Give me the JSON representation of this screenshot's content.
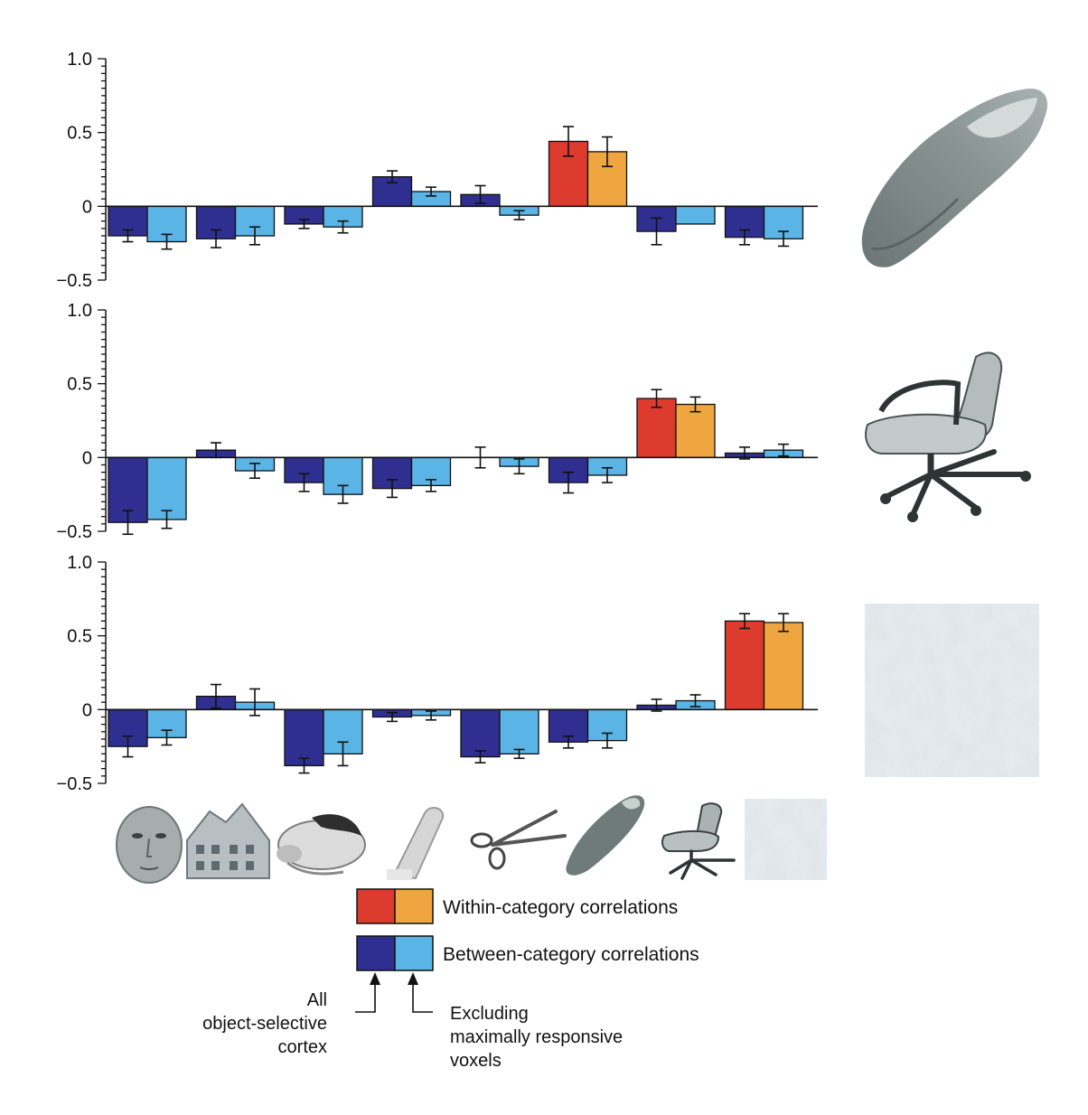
{
  "chart_data": [
    {
      "type": "bar",
      "ylim": [
        -0.5,
        1.0
      ],
      "yticks": [
        "1.0",
        "0.5",
        "0",
        "−0.5"
      ],
      "reference_image": "shoe",
      "categories_images": [
        "face",
        "house",
        "cat",
        "bottle",
        "scissors",
        "shoe",
        "chair",
        "scrambled"
      ],
      "series": [
        {
          "values": [
            -0.2,
            -0.22,
            -0.12,
            0.2,
            0.08,
            -0.17,
            -0.21
          ],
          "errors": [
            0.04,
            0.06,
            0.03,
            0.04,
            0.06,
            0.09,
            0.05
          ]
        },
        {
          "values": [
            -0.24,
            -0.2,
            -0.14,
            0.1,
            -0.06,
            -0.12,
            -0.22
          ],
          "errors": [
            0.05,
            0.06,
            0.04,
            0.03,
            0.03,
            0.0,
            0.05
          ]
        }
      ],
      "within": {
        "index": 5,
        "values": [
          0.44,
          0.37
        ],
        "errors": [
          0.1,
          0.1
        ]
      }
    },
    {
      "type": "bar",
      "ylim": [
        -0.5,
        1.0
      ],
      "yticks": [
        "1.0",
        "0.5",
        "0",
        "−0.5"
      ],
      "reference_image": "chair",
      "series": [
        {
          "values": [
            -0.44,
            0.05,
            -0.17,
            -0.21,
            0.0,
            -0.17,
            0.03
          ],
          "errors": [
            0.08,
            0.05,
            0.06,
            0.06,
            0.07,
            0.07,
            0.04
          ]
        },
        {
          "values": [
            -0.42,
            -0.09,
            -0.25,
            -0.19,
            -0.06,
            -0.12,
            0.05
          ],
          "errors": [
            0.06,
            0.05,
            0.06,
            0.04,
            0.05,
            0.05,
            0.04
          ]
        }
      ],
      "within": {
        "index": 6,
        "values": [
          0.4,
          0.36
        ],
        "errors": [
          0.06,
          0.05
        ]
      }
    },
    {
      "type": "bar",
      "ylim": [
        -0.5,
        1.0
      ],
      "yticks": [
        "1.0",
        "0.5",
        "0",
        "−0.5"
      ],
      "reference_image": "scrambled",
      "series": [
        {
          "values": [
            -0.25,
            0.09,
            -0.38,
            -0.05,
            -0.32,
            -0.22,
            0.03
          ],
          "errors": [
            0.07,
            0.08,
            0.05,
            0.03,
            0.04,
            0.04,
            0.04
          ]
        },
        {
          "values": [
            -0.19,
            0.05,
            -0.3,
            -0.04,
            -0.3,
            -0.21,
            0.06
          ],
          "errors": [
            0.05,
            0.09,
            0.08,
            0.03,
            0.03,
            0.05,
            0.04
          ]
        }
      ],
      "within": {
        "index": 7,
        "values": [
          0.6,
          0.59
        ],
        "errors": [
          0.05,
          0.06
        ]
      }
    }
  ],
  "legend": {
    "within_label": "Within-category correlations",
    "between_label": "Between-category correlations"
  },
  "annotations": {
    "left_note": [
      "All",
      "object-selective",
      "cortex"
    ],
    "right_note": [
      "Excluding",
      "maximally responsive",
      "voxels"
    ]
  },
  "colors": {
    "between_all": "#2f2f91",
    "between_excl": "#5ab4e6",
    "within_all": "#dd3b2e",
    "within_excl": "#f0a640",
    "axis": "#111111"
  }
}
